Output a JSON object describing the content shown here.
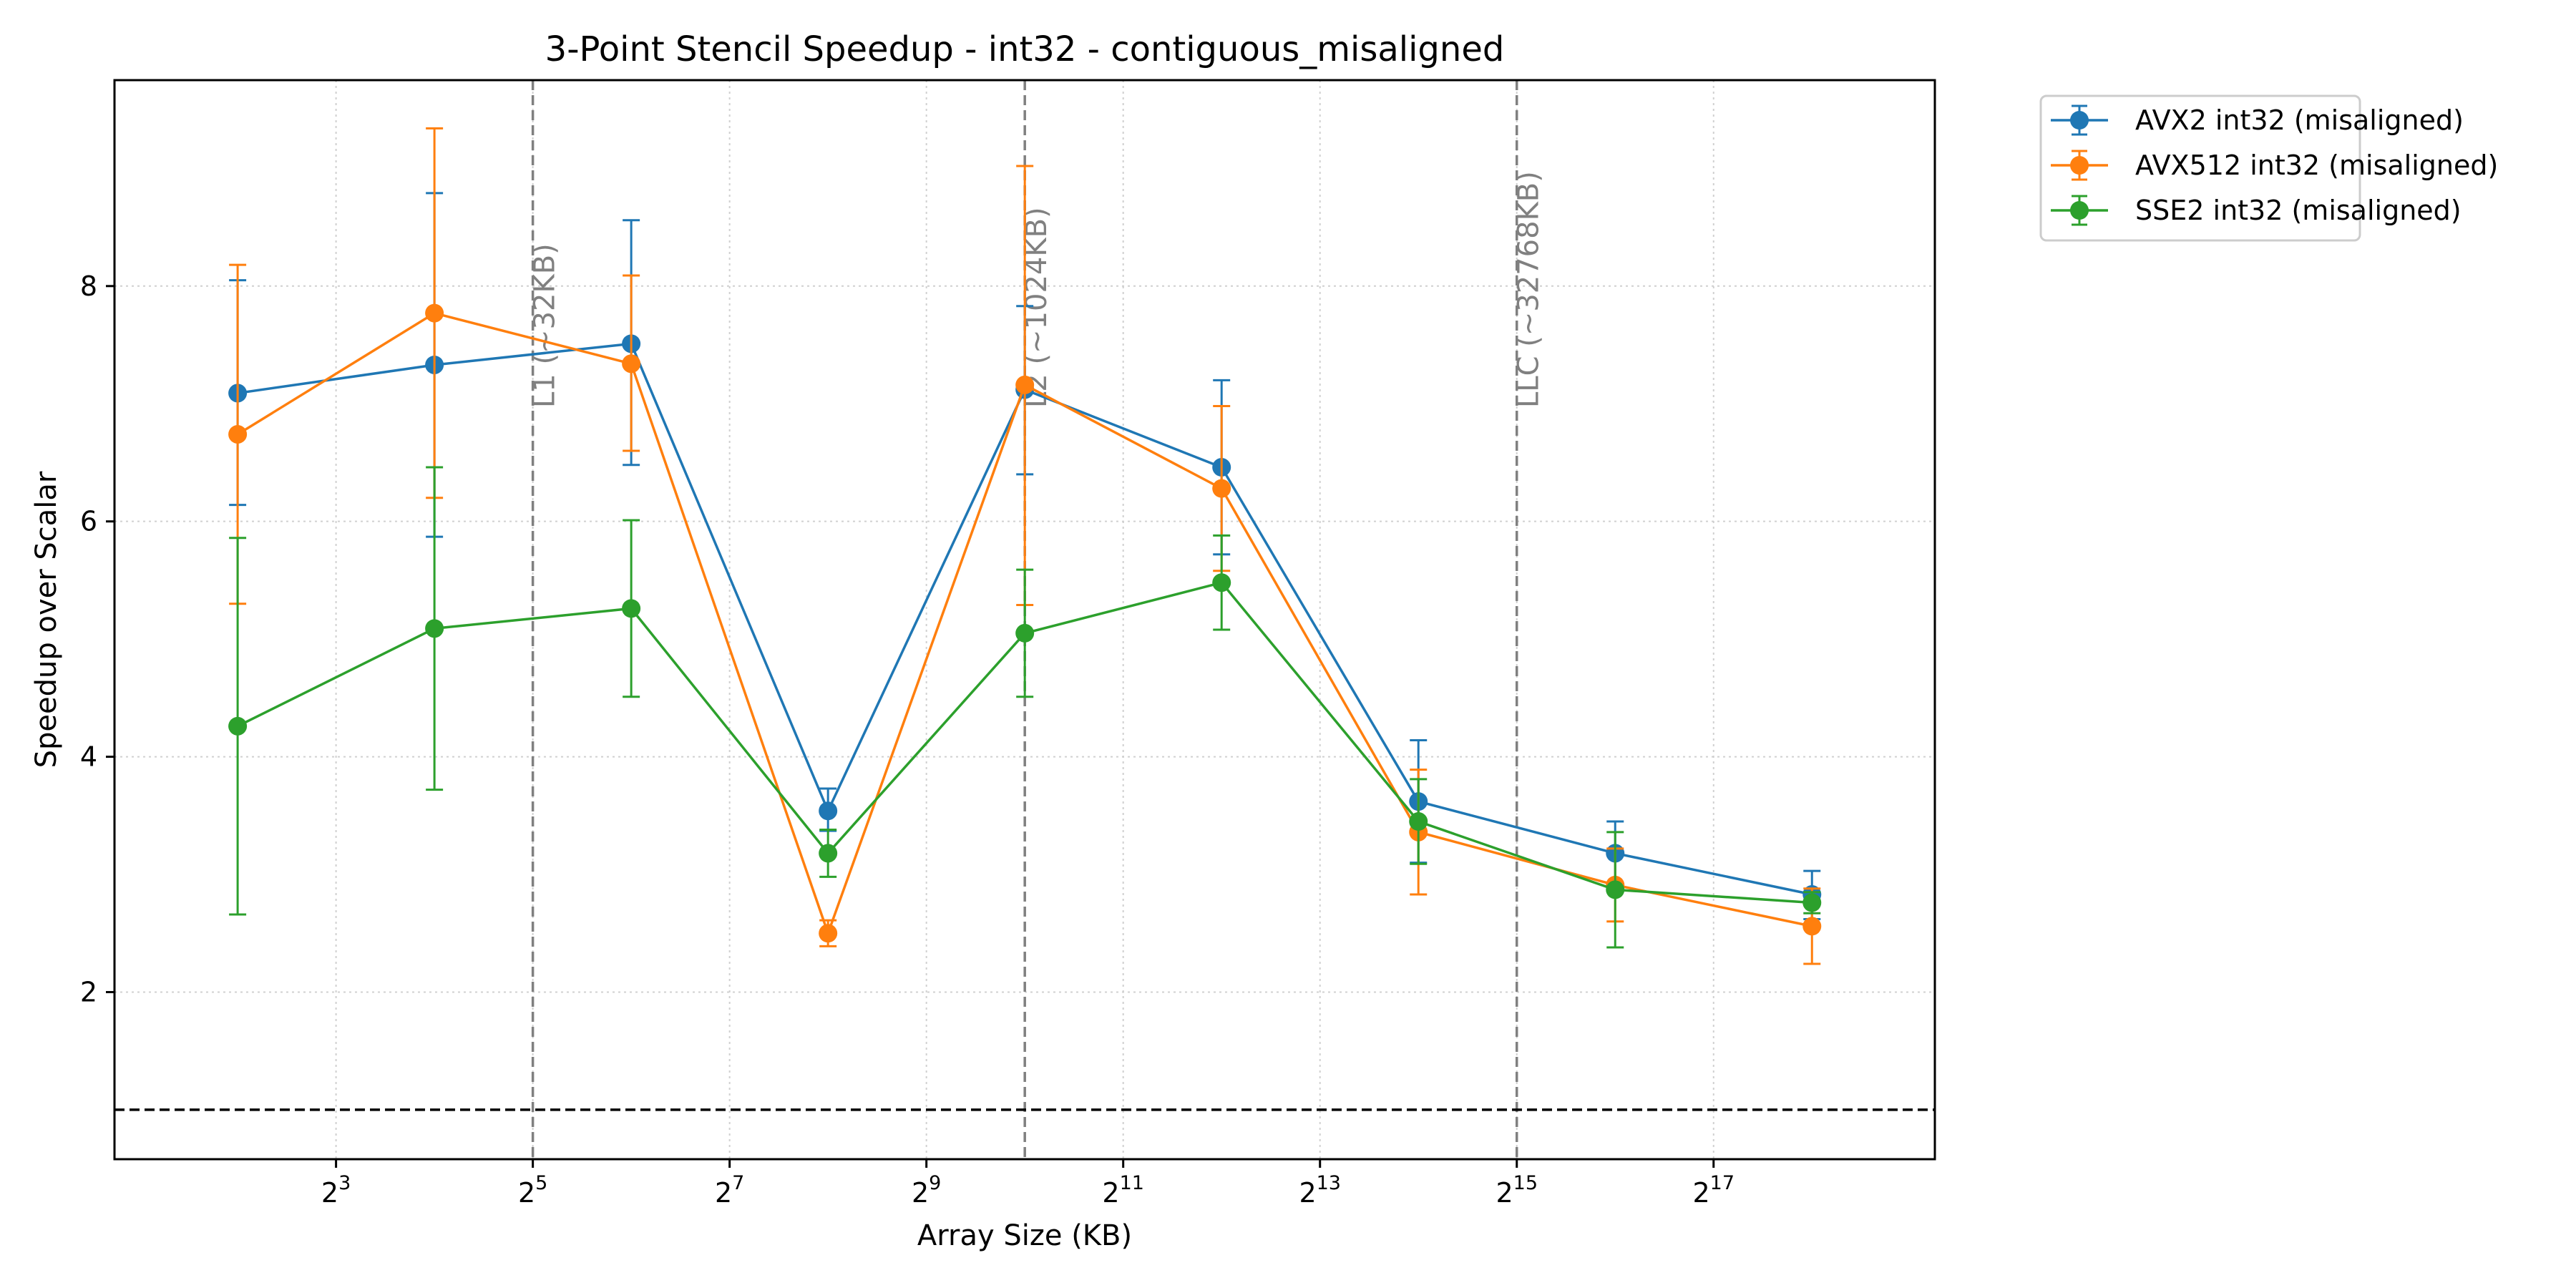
{
  "chart_data": {
    "type": "line",
    "title": "3-Point Stencil Speedup - int32 - contiguous_misaligned",
    "xlabel": "Array Size (KB)",
    "ylabel": "Speedup over Scalar",
    "x_scale": "log2",
    "x": [
      4,
      16,
      64,
      256,
      1024,
      4096,
      16384,
      65536,
      262144
    ],
    "xlim": [
      1.68,
      623000
    ],
    "ylim": [
      0.58,
      9.75
    ],
    "x_ticks": [
      {
        "value": 8,
        "base": "2",
        "exp": "3"
      },
      {
        "value": 32,
        "base": "2",
        "exp": "5"
      },
      {
        "value": 128,
        "base": "2",
        "exp": "7"
      },
      {
        "value": 512,
        "base": "2",
        "exp": "9"
      },
      {
        "value": 2048,
        "base": "2",
        "exp": "11"
      },
      {
        "value": 8192,
        "base": "2",
        "exp": "13"
      },
      {
        "value": 32768,
        "base": "2",
        "exp": "15"
      },
      {
        "value": 131072,
        "base": "2",
        "exp": "17"
      }
    ],
    "y_ticks": [
      {
        "value": 2,
        "label": "2"
      },
      {
        "value": 4,
        "label": "4"
      },
      {
        "value": 6,
        "label": "6"
      },
      {
        "value": 8,
        "label": "8"
      }
    ],
    "grid": true,
    "legend_position": "outside-upper-right",
    "series": [
      {
        "name": "AVX2 int32 (misaligned)",
        "color": "#1f77b4",
        "values": [
          7.09,
          7.33,
          7.51,
          3.54,
          7.12,
          6.46,
          3.62,
          3.18,
          2.83
        ],
        "err_low": [
          6.14,
          5.87,
          6.48,
          3.37,
          6.4,
          5.72,
          3.1,
          2.89,
          2.62
        ],
        "err_high": [
          8.05,
          8.79,
          8.56,
          3.73,
          7.83,
          7.2,
          4.14,
          3.45,
          3.03
        ]
      },
      {
        "name": "AVX512 int32 (misaligned)",
        "color": "#ff7f0e",
        "values": [
          6.74,
          7.77,
          7.34,
          2.5,
          7.16,
          6.28,
          3.36,
          2.91,
          2.56
        ],
        "err_low": [
          5.3,
          6.2,
          6.6,
          2.39,
          5.29,
          5.58,
          2.83,
          2.6,
          2.24
        ],
        "err_high": [
          8.18,
          9.34,
          8.09,
          2.61,
          9.02,
          6.98,
          3.89,
          3.22,
          2.88
        ]
      },
      {
        "name": "SSE2 int32 (misaligned)",
        "color": "#2ca02c",
        "values": [
          4.26,
          5.09,
          5.26,
          3.18,
          5.05,
          5.48,
          3.45,
          2.87,
          2.76
        ],
        "err_low": [
          2.66,
          3.72,
          4.51,
          2.98,
          4.51,
          5.08,
          3.09,
          2.38,
          2.67
        ],
        "err_high": [
          5.86,
          6.46,
          6.01,
          3.38,
          5.59,
          5.88,
          3.81,
          3.36,
          2.85
        ]
      }
    ],
    "reference_lines": [
      {
        "axis": "x",
        "value": 32,
        "label": "L1 (~32KB)",
        "color": "#808080"
      },
      {
        "axis": "x",
        "value": 1024,
        "label": "L2 (~1024KB)",
        "color": "#808080"
      },
      {
        "axis": "x",
        "value": 32768,
        "label": "LLC (~32768KB)",
        "color": "#808080"
      },
      {
        "axis": "y",
        "value": 1.0,
        "label": "",
        "color": "#000000"
      }
    ]
  }
}
